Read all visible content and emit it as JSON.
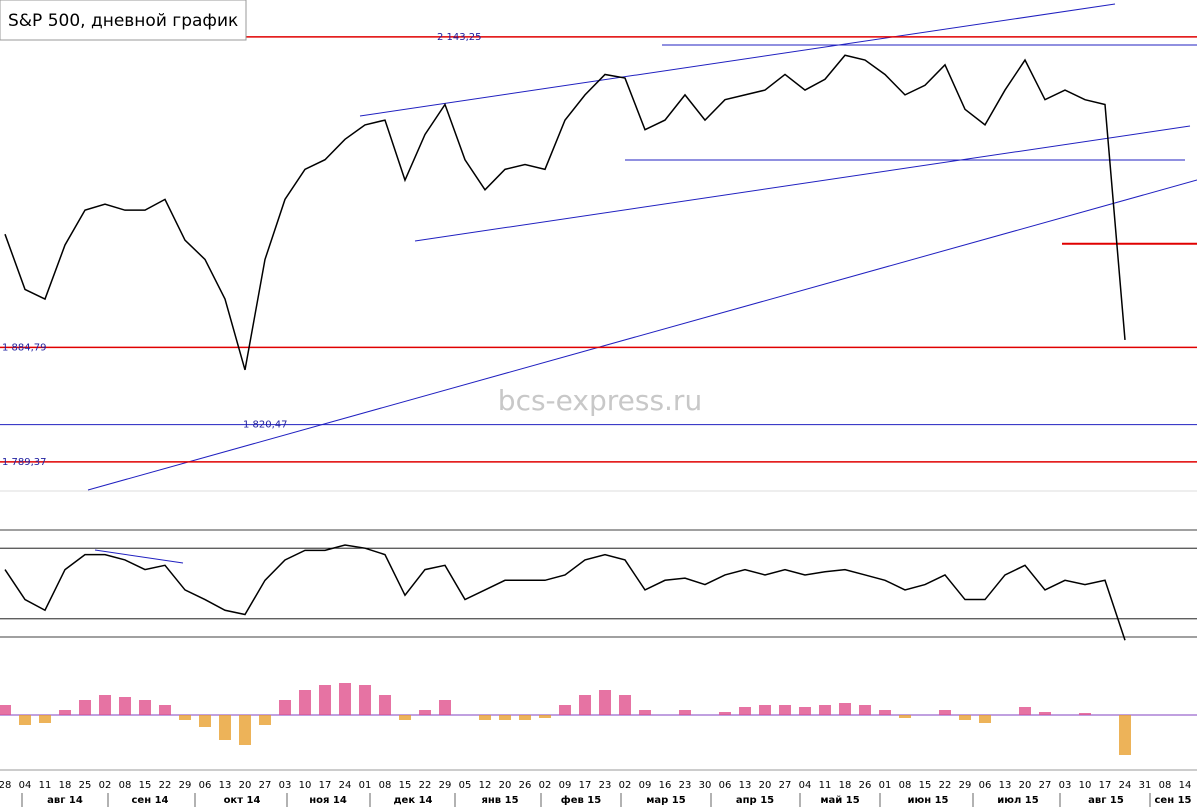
{
  "chart_data": {
    "type": "line",
    "title": "S&P 500, дневной график",
    "watermark": "bcs-express.ru",
    "categories": [
      "28",
      "04",
      "11",
      "18",
      "25",
      "02",
      "08",
      "15",
      "22",
      "29",
      "06",
      "13",
      "20",
      "27",
      "03",
      "10",
      "17",
      "24",
      "01",
      "08",
      "15",
      "22",
      "29",
      "05",
      "12",
      "20",
      "26",
      "02",
      "09",
      "17",
      "23",
      "02",
      "09",
      "16",
      "23",
      "30",
      "06",
      "13",
      "20",
      "27",
      "04",
      "11",
      "18",
      "26",
      "01",
      "08",
      "15",
      "22",
      "29",
      "06",
      "13",
      "20",
      "27",
      "03",
      "10",
      "17",
      "24",
      "31",
      "08",
      "14"
    ],
    "months": [
      "авг 14",
      "сен 14",
      "окт 14",
      "ноя 14",
      "дек 14",
      "янв 15",
      "фев 15",
      "мар 15",
      "апр 15",
      "май 15",
      "июн 15",
      "июл 15",
      "авг 15",
      "сен 15"
    ],
    "series": [
      {
        "color": "#000000",
        "values": [
          1979,
          1933,
          1925,
          1970,
          1999,
          2004,
          1999,
          1999,
          2008,
          1974,
          1958,
          1925,
          1866,
          1958,
          2008,
          2033,
          2041,
          2058,
          2070,
          2074,
          2024,
          2062,
          2087,
          2041,
          2016,
          2033,
          2037,
          2033,
          2074,
          2095,
          2112,
          2109,
          2066,
          2074,
          2095,
          2074,
          2091,
          2095,
          2099,
          2112,
          2099,
          2108,
          2128,
          2124,
          2112,
          2095,
          2103,
          2120,
          2083,
          2070,
          2099,
          2124,
          2091,
          2099,
          2091,
          2087,
          1891,
          null,
          null,
          null
        ]
      }
    ],
    "ylim": [
      1766,
      2174
    ],
    "levels": [
      {
        "value": 2143.25,
        "label": "2 143,25",
        "color": "#e00000"
      },
      {
        "value": 1884.79,
        "label": "1 884,79",
        "color": "#e00000"
      },
      {
        "value": 1820.47,
        "label": "1 820,47",
        "color": "#2020c0"
      },
      {
        "value": 1789.37,
        "label": "1 789,37",
        "color": "#e00000"
      }
    ],
    "marker_level": 1971,
    "indicator": {
      "color": "#000000",
      "ylim": [
        0,
        100
      ],
      "yticks": [
        0,
        17,
        83,
        100
      ],
      "values": [
        63,
        35,
        25,
        63,
        77,
        77,
        72,
        63,
        67,
        44,
        35,
        25,
        21,
        53,
        72,
        81,
        81,
        86,
        83,
        77,
        39,
        63,
        67,
        35,
        44,
        53,
        53,
        53,
        58,
        72,
        77,
        72,
        44,
        53,
        55,
        49,
        58,
        63,
        58,
        63,
        58,
        61,
        63,
        58,
        53,
        44,
        49,
        58,
        35,
        35,
        58,
        67,
        44,
        53,
        49,
        53,
        -3,
        null,
        null,
        null
      ]
    },
    "histogram": {
      "ylim": [
        -55,
        65
      ],
      "positive_color": "#e0508c",
      "negative_color": "#e8a030",
      "values": [
        10,
        -10,
        -8,
        5,
        15,
        20,
        18,
        15,
        10,
        -5,
        -12,
        -25,
        -30,
        -10,
        15,
        25,
        30,
        32,
        30,
        20,
        -5,
        5,
        15,
        0,
        -5,
        -5,
        -5,
        -3,
        10,
        20,
        25,
        20,
        5,
        0,
        5,
        0,
        3,
        8,
        10,
        10,
        8,
        10,
        12,
        10,
        5,
        -3,
        0,
        5,
        -5,
        -8,
        0,
        8,
        3,
        0,
        2,
        0,
        -40,
        null,
        null,
        null
      ]
    }
  }
}
